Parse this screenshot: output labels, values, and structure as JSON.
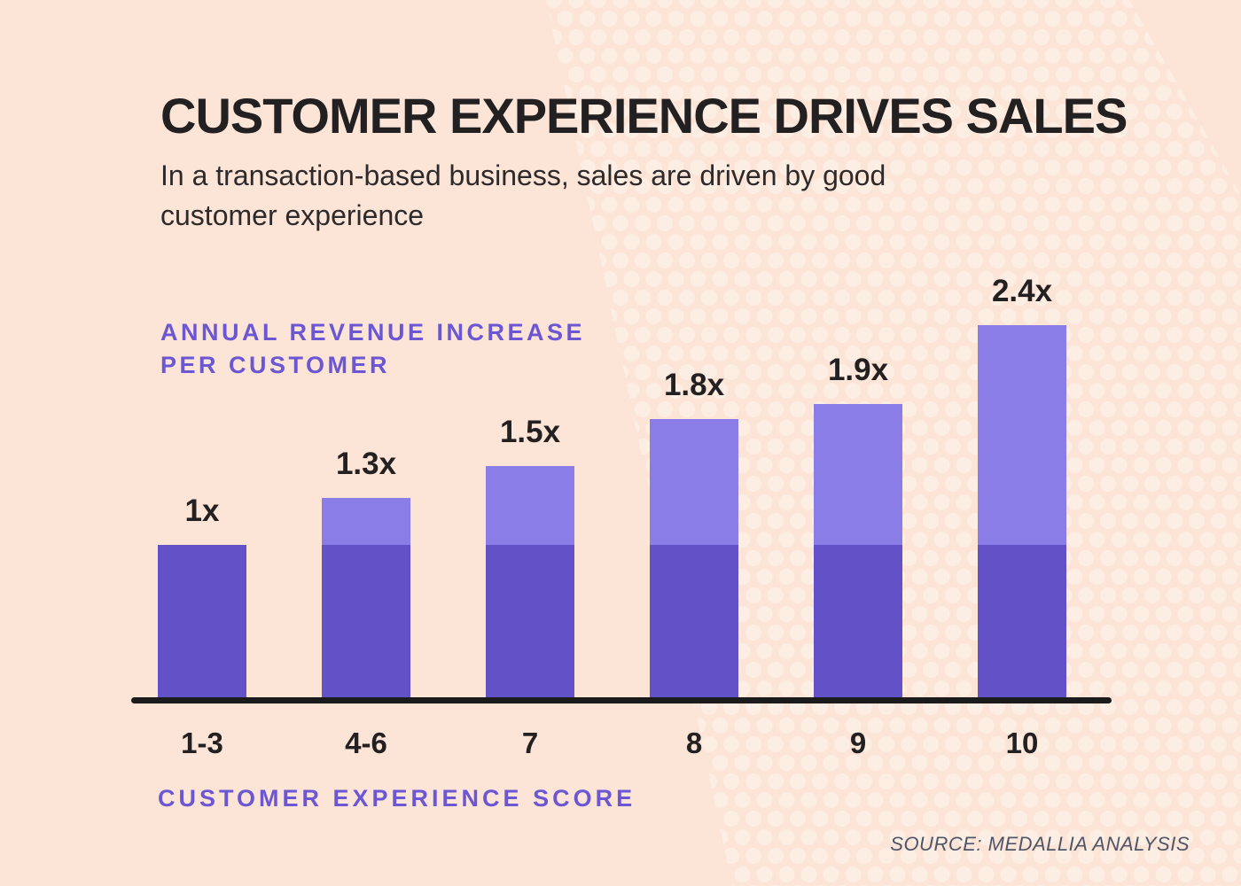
{
  "header": {
    "title": "CUSTOMER EXPERIENCE DRIVES SALES",
    "subtitle_line1": "In a transaction-based business, sales are driven by good",
    "subtitle_line2": "customer experience"
  },
  "chart": {
    "y_axis_label_line1": "ANNUAL REVENUE INCREASE",
    "y_axis_label_line2": "PER CUSTOMER",
    "x_axis_label": "CUSTOMER EXPERIENCE SCORE"
  },
  "source": "SOURCE: MEDALLIA ANALYSIS",
  "colors": {
    "background": "#fce4d7",
    "dot_pattern": "#fdeee3",
    "bar_dark": "#6351c8",
    "bar_light": "#8b7de7",
    "accent_purple": "#6b57d3",
    "text_dark": "#232021",
    "axis_line": "#1b1b1b",
    "source_text": "#4e5668"
  },
  "chart_data": {
    "type": "bar",
    "title": "CUSTOMER EXPERIENCE DRIVES SALES",
    "subtitle": "In a transaction-based business, sales are driven by good customer experience",
    "categories": [
      "1-3",
      "4-6",
      "7",
      "8",
      "9",
      "10"
    ],
    "values": [
      1.0,
      1.3,
      1.5,
      1.8,
      1.9,
      2.4
    ],
    "value_labels": [
      "1x",
      "1.3x",
      "1.5x",
      "1.8x",
      "1.9x",
      "2.4x"
    ],
    "xlabel": "CUSTOMER EXPERIENCE SCORE",
    "ylabel": "ANNUAL REVENUE INCREASE PER CUSTOMER",
    "ylim": [
      0,
      2.4
    ],
    "baseline_value": 1.0,
    "segment_note": "each bar is two-tone: dark purple up to 1x baseline, light purple for amount above 1x",
    "grid": "off",
    "legend": "none",
    "source": "SOURCE: MEDALLIA ANALYSIS"
  }
}
